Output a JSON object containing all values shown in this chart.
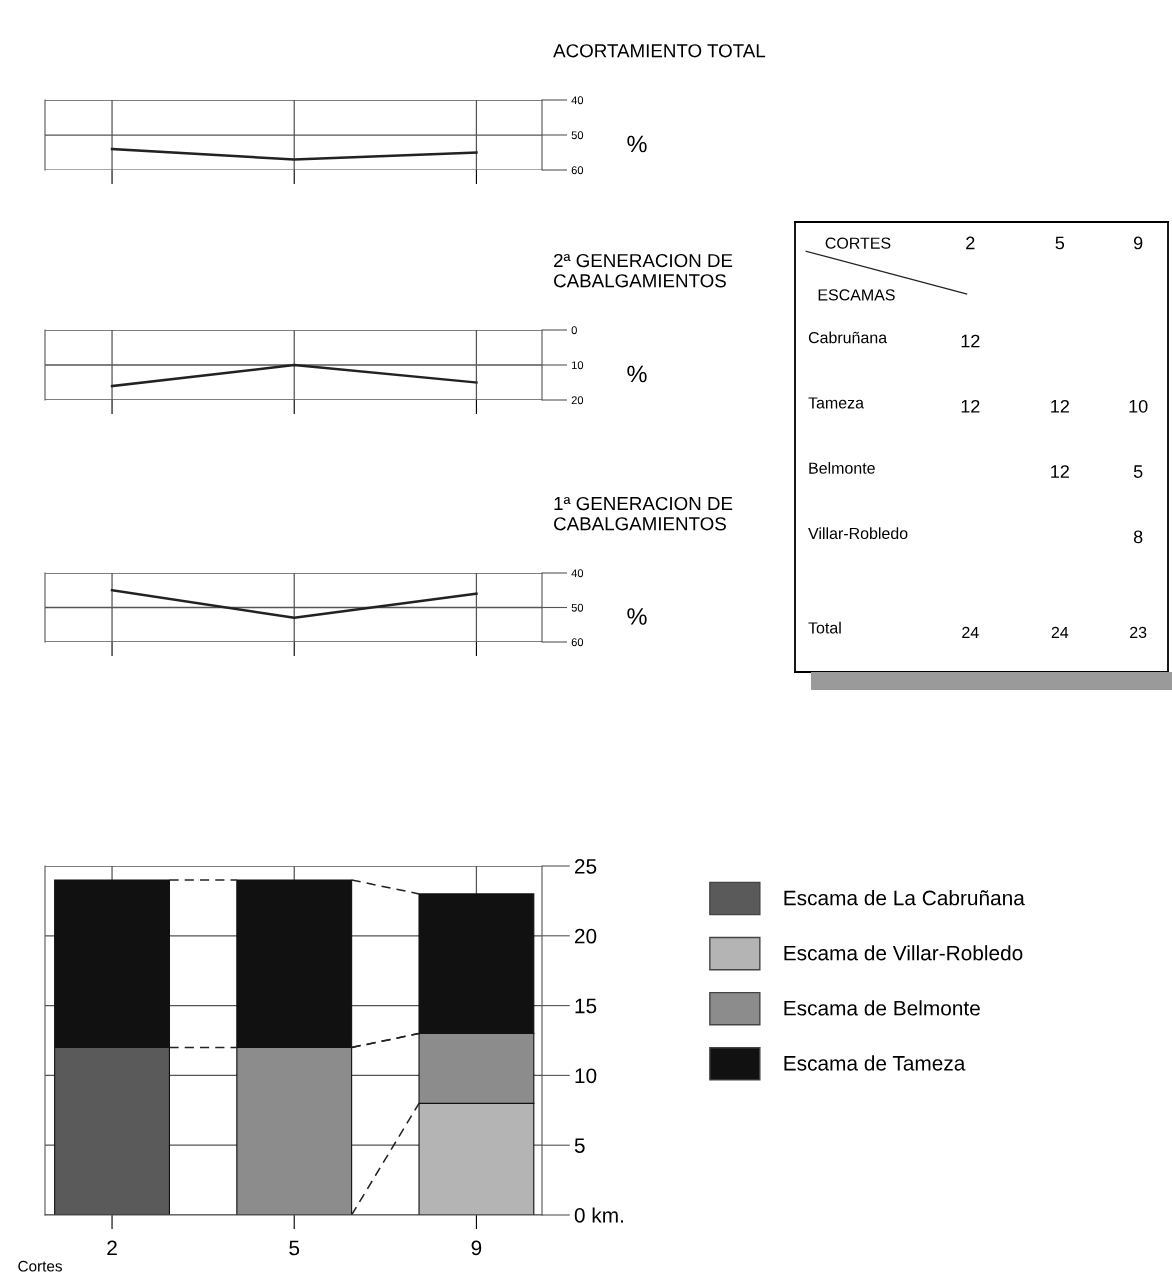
{
  "chart_data": [
    {
      "type": "line",
      "title": "ACORTAMIENTO TOTAL",
      "categories": [
        "2",
        "5",
        "9"
      ],
      "values": [
        54,
        57,
        55
      ],
      "color": "#222222",
      "ylim": [
        60,
        40
      ],
      "yticks": [
        40,
        50,
        60
      ],
      "ylabel": "%",
      "grid": true,
      "tick_labels": "y"
    },
    {
      "type": "other",
      "categories": [
        "2",
        "5",
        "9"
      ],
      "y_categories": [
        "Cabruñana",
        "Tameza",
        "Belmonte",
        "Villar-Robledo"
      ],
      "cell_labels": [
        [
          "12",
          null,
          null
        ],
        [
          "12",
          "12",
          "10"
        ],
        [
          null,
          "12",
          "5"
        ],
        [
          null,
          null,
          "8"
        ]
      ],
      "totals": [
        "24",
        "24",
        "23"
      ],
      "annotations": [
        "CORTES",
        "ESCAMAS",
        "Total"
      ]
    },
    {
      "type": "line",
      "title": "2ª GENERACION DE\nCABALGAMIENTOS",
      "categories": [
        "2",
        "5",
        "9"
      ],
      "values": [
        16,
        10,
        15
      ],
      "color": "#222222",
      "ylim": [
        20,
        0
      ],
      "yticks": [
        0,
        10,
        20
      ],
      "ylabel": "%",
      "grid": true,
      "tick_labels": "y"
    },
    {
      "type": "line",
      "title": "1ª GENERACION DE\nCABALGAMIENTOS",
      "categories": [
        "2",
        "5",
        "9"
      ],
      "values": [
        45,
        53,
        46
      ],
      "color": "#222222",
      "ylim": [
        60,
        40
      ],
      "yticks": [
        40,
        50,
        60
      ],
      "ylabel": "%",
      "grid": true,
      "tick_labels": "y"
    },
    {
      "type": "bar",
      "stacked": true,
      "categories": [
        "2",
        "5",
        "9"
      ],
      "series": [
        {
          "name": "Escama de La Cabruñana",
          "color": "#5a5a5a",
          "values": [
            12,
            null,
            null
          ]
        },
        {
          "name": "Escama de Villar-Robledo",
          "color": "#b4b4b4",
          "values": [
            null,
            null,
            8
          ]
        },
        {
          "name": "Escama de Belmonte",
          "color": "#8c8c8c",
          "values": [
            null,
            12,
            5
          ]
        },
        {
          "name": "Escama de Tameza",
          "color": "#111111",
          "values": [
            12,
            12,
            10
          ]
        }
      ],
      "ylim": [
        0,
        25
      ],
      "yticks": [
        {
          "value": 0,
          "label": "0 km."
        },
        5,
        10,
        15,
        20,
        25
      ],
      "xlabel": "Cortes",
      "legend": "right",
      "grid": true
    }
  ]
}
